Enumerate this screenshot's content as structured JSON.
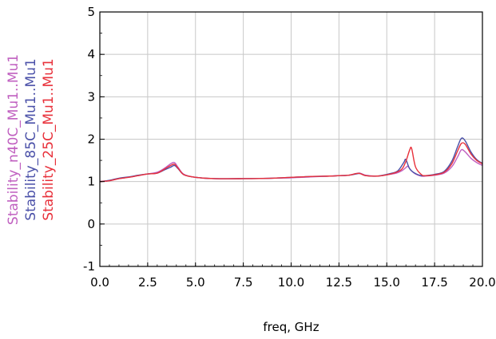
{
  "chart_data": {
    "type": "line",
    "title": "",
    "xlabel": "freq, GHz",
    "ylabel": "",
    "xlim": [
      0.0,
      20.0
    ],
    "ylim": [
      -1,
      5
    ],
    "x_ticks": [
      "0.0",
      "2.5",
      "5.0",
      "7.5",
      "10.0",
      "12.5",
      "15.0",
      "17.5",
      "20.0"
    ],
    "y_ticks": [
      "-1",
      "0",
      "1",
      "2",
      "3",
      "4",
      "5"
    ],
    "grid": true,
    "legend_placement": "left, rotated vertical",
    "series": [
      {
        "name": "Stability_n40C_Mu1..Mu1",
        "color": "#c060c0",
        "x": [
          0,
          0.5,
          1.0,
          1.5,
          2.0,
          2.5,
          3.0,
          3.4,
          3.7,
          3.9,
          4.1,
          4.4,
          5.0,
          6.0,
          7.5,
          9.0,
          10.0,
          11.0,
          12.0,
          12.5,
          13.0,
          13.4,
          13.6,
          13.9,
          14.5,
          15.0,
          15.5,
          15.8,
          16.0,
          16.1,
          16.3,
          16.5,
          16.8,
          17.0,
          17.5,
          18.0,
          18.4,
          18.7,
          18.9,
          19.1,
          19.4,
          19.7,
          20.0
        ],
        "y": [
          1.0,
          1.02,
          1.07,
          1.1,
          1.14,
          1.18,
          1.22,
          1.32,
          1.42,
          1.45,
          1.33,
          1.17,
          1.1,
          1.07,
          1.07,
          1.08,
          1.09,
          1.11,
          1.13,
          1.14,
          1.15,
          1.19,
          1.2,
          1.15,
          1.13,
          1.16,
          1.2,
          1.26,
          1.33,
          1.36,
          1.25,
          1.18,
          1.13,
          1.13,
          1.15,
          1.2,
          1.35,
          1.58,
          1.75,
          1.7,
          1.55,
          1.45,
          1.38
        ]
      },
      {
        "name": "Stability_85C_Mu1..Mu1",
        "color": "#4a50a8",
        "x": [
          0,
          0.5,
          1.0,
          1.5,
          2.0,
          2.5,
          3.0,
          3.4,
          3.7,
          3.9,
          4.1,
          4.4,
          5.0,
          6.0,
          7.5,
          9.0,
          10.0,
          11.0,
          12.0,
          12.5,
          13.0,
          13.4,
          13.6,
          13.9,
          14.5,
          15.0,
          15.5,
          15.7,
          15.9,
          16.0,
          16.2,
          16.5,
          16.8,
          17.0,
          17.5,
          18.0,
          18.4,
          18.7,
          18.9,
          19.1,
          19.4,
          19.7,
          20.0
        ],
        "y": [
          1.0,
          1.03,
          1.08,
          1.11,
          1.15,
          1.18,
          1.2,
          1.28,
          1.34,
          1.38,
          1.3,
          1.16,
          1.1,
          1.07,
          1.07,
          1.08,
          1.1,
          1.12,
          1.13,
          1.14,
          1.15,
          1.18,
          1.19,
          1.14,
          1.13,
          1.17,
          1.23,
          1.32,
          1.46,
          1.52,
          1.3,
          1.19,
          1.14,
          1.14,
          1.17,
          1.24,
          1.48,
          1.82,
          2.02,
          1.96,
          1.7,
          1.52,
          1.43
        ]
      },
      {
        "name": "Stability_25C_Mu1..Mu1",
        "color": "#e8303a",
        "x": [
          0,
          0.5,
          1.0,
          1.5,
          2.0,
          2.5,
          3.0,
          3.4,
          3.7,
          3.9,
          4.1,
          4.4,
          5.0,
          6.0,
          7.5,
          9.0,
          10.0,
          11.0,
          12.0,
          12.5,
          13.0,
          13.4,
          13.6,
          13.9,
          14.5,
          15.0,
          15.5,
          15.8,
          16.0,
          16.2,
          16.3,
          16.5,
          16.8,
          17.0,
          17.5,
          18.0,
          18.4,
          18.7,
          18.9,
          19.1,
          19.4,
          19.7,
          20.0
        ],
        "y": [
          1.0,
          1.02,
          1.07,
          1.1,
          1.14,
          1.18,
          1.2,
          1.3,
          1.38,
          1.41,
          1.31,
          1.16,
          1.1,
          1.07,
          1.07,
          1.08,
          1.1,
          1.12,
          1.13,
          1.14,
          1.15,
          1.19,
          1.19,
          1.14,
          1.13,
          1.16,
          1.22,
          1.3,
          1.48,
          1.75,
          1.78,
          1.35,
          1.17,
          1.14,
          1.16,
          1.22,
          1.42,
          1.72,
          1.9,
          1.88,
          1.65,
          1.5,
          1.42
        ]
      }
    ]
  }
}
